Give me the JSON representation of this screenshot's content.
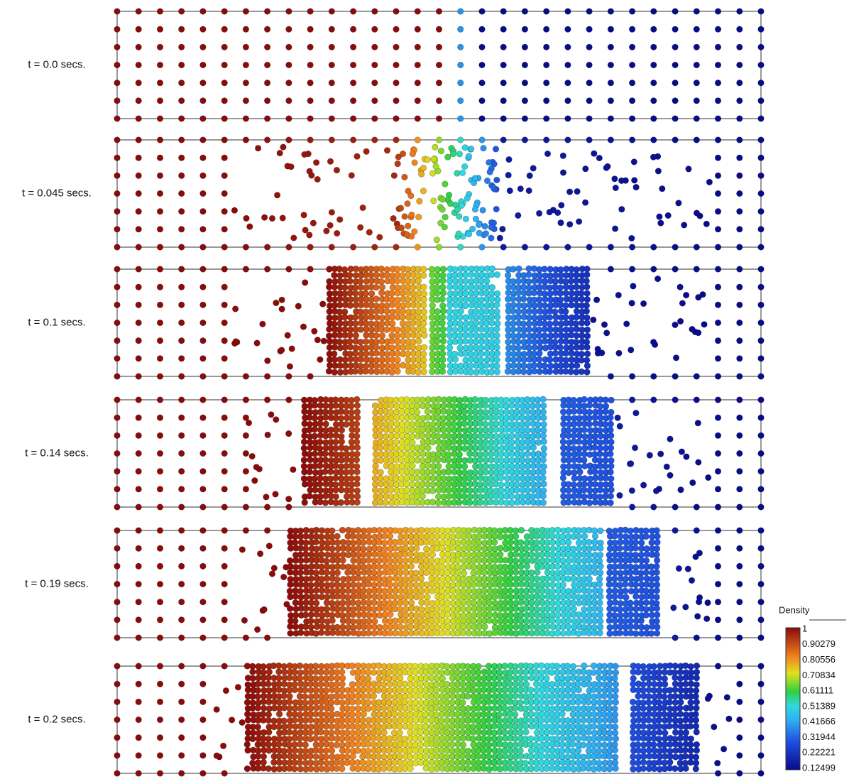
{
  "panels": [
    {
      "label": "t = 0.0 secs."
    },
    {
      "label": "t = 0.045 secs."
    },
    {
      "label": "t = 0.1 secs."
    },
    {
      "label": "t = 0.14 secs."
    },
    {
      "label": "t = 0.19 secs."
    },
    {
      "label": "t = 0.2 secs."
    }
  ],
  "colorbar": {
    "title": "Density",
    "ticks": [
      "1",
      "0.90279",
      "0.80556",
      "0.70834",
      "0.61111",
      "0.51389",
      "0.41666",
      "0.31944",
      "0.22221",
      "0.12499"
    ]
  }
}
